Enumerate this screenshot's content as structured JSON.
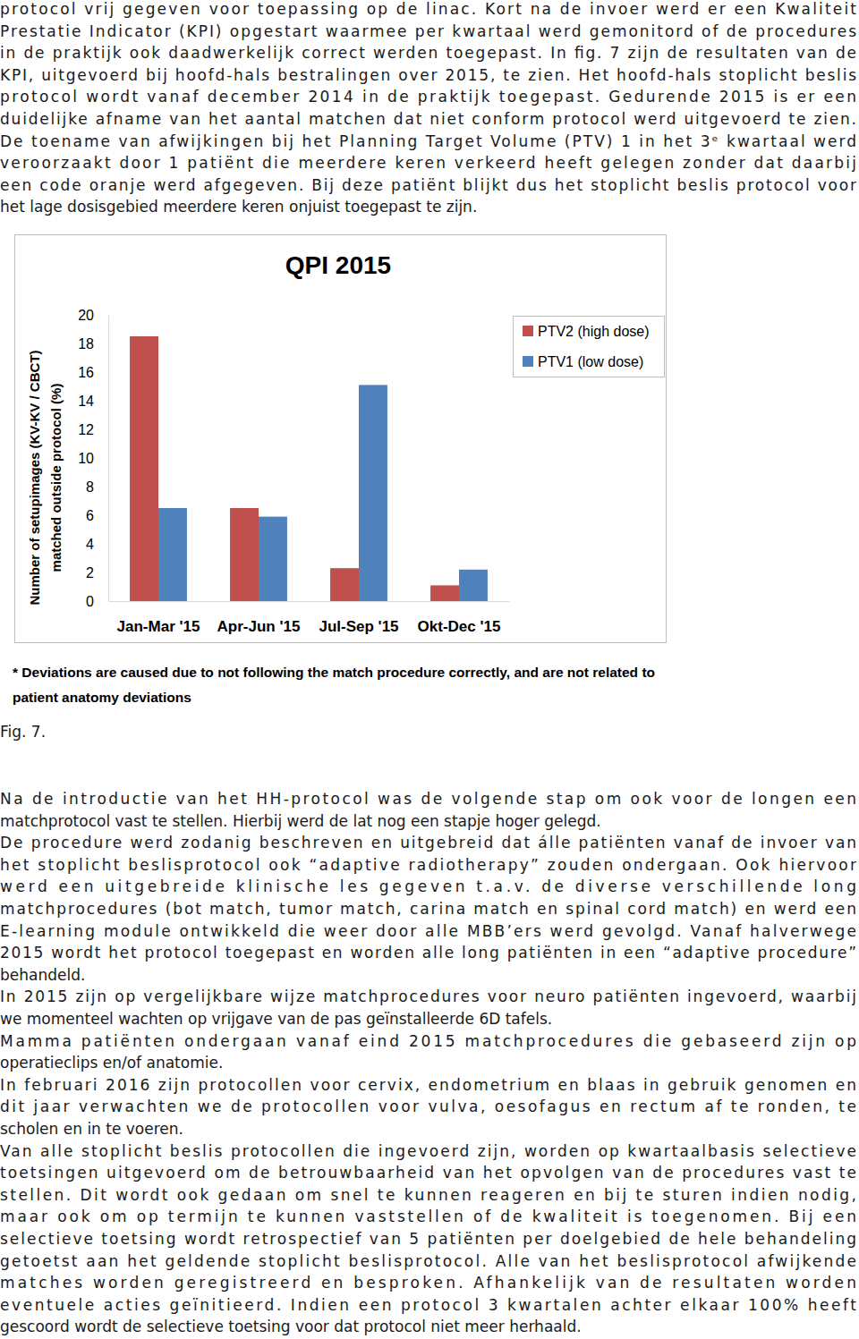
{
  "text_before": [
    [
      "protocol vrij gegeven voor toepassing op de linac. Kort na de invoer werd er een Kwaliteit",
      "Prestatie Indicator (KPI) opgestart waarmee per kwartaal werd gemonitord of de procedures",
      "in de praktijk ook daadwerkelijk correct werden toegepast. In fig. 7 zijn de resultaten van de",
      "KPI, uitgevoerd bij hoofd-hals bestralingen over 2015, te zien. Het hoofd-hals stoplicht beslis",
      "protocol wordt vanaf december 2014 in de praktijk toegepast. Gedurende 2015 is er een",
      "duidelijke afname van het aantal matchen dat niet conform protocol werd uitgevoerd te zien.",
      "De toename van afwijkingen bij het Planning Target Volume (PTV) 1 in het 3ᵉ kwartaal werd",
      "veroorzaakt door 1 patiënt die meerdere keren verkeerd heeft gelegen zonder dat daarbij",
      "een code oranje werd afgegeven. Bij deze patiënt blijkt dus het stoplicht beslis protocol voor",
      "het lage dosisgebied meerdere keren onjuist toegepast te zijn."
    ]
  ],
  "chart_data": {
    "type": "bar",
    "title": "QPI 2015",
    "y_label": [
      "Number of setupimages (KV-KV / CBCT)",
      "matched outside protocol (%)"
    ],
    "categories": [
      "Jan-Mar '15",
      "Apr-Jun '15",
      "Jul-Sep '15",
      "Okt-Dec '15"
    ],
    "series": [
      {
        "name": "PTV2 (high dose)",
        "color": "#c0504d",
        "values": [
          18.5,
          6.5,
          2.3,
          1.1
        ]
      },
      {
        "name": "PTV1 (low dose)",
        "color": "#4f81bd",
        "values": [
          6.5,
          5.9,
          15.1,
          2.2
        ]
      }
    ],
    "ylim": [
      0,
      20
    ],
    "yticks": [
      0,
      2,
      4,
      6,
      8,
      10,
      12,
      14,
      16,
      18,
      20
    ],
    "grid": false,
    "legend": "right"
  },
  "footnote": [
    "* Deviations are caused due to not following the match procedure correctly, and are not related to",
    "patient anatomy deviations"
  ],
  "caption": "Fig. 7.",
  "text_after": [
    [
      "Na de introductie van het HH-protocol was de volgende stap om ook voor de longen een",
      "matchprotocol vast te stellen. Hierbij werd de lat nog een stapje hoger gelegd."
    ],
    [
      "De procedure werd zodanig beschreven en uitgebreid dat álle patiënten vanaf de invoer van",
      "het stoplicht beslisprotocol ook “adaptive radiotherapy” zouden ondergaan. Ook hiervoor",
      "werd een uitgebreide klinische les gegeven t.a.v. de diverse verschillende long",
      "matchprocedures (bot match, tumor match, carina match en spinal cord match) en werd een",
      "E-learning module ontwikkeld die weer door alle MBB’ers werd gevolgd. Vanaf halverwege",
      "2015 wordt het protocol toegepast en worden alle long patiënten in een “adaptive procedure”",
      "behandeld."
    ],
    [
      "In 2015 zijn op vergelijkbare wijze matchprocedures voor neuro patiënten ingevoerd, waarbij",
      "we momenteel wachten op vrijgave van de pas geïnstalleerde 6D tafels."
    ],
    [
      "Mamma patiënten ondergaan vanaf eind 2015 matchprocedures die gebaseerd zijn op",
      "operatieclips en/of anatomie."
    ],
    [
      "In februari 2016 zijn protocollen voor cervix, endometrium en blaas in gebruik genomen en",
      "dit jaar verwachten we de protocollen voor vulva, oesofagus en rectum af te ronden, te",
      "scholen en in te voeren."
    ],
    [
      "Van alle stoplicht beslis protocollen die ingevoerd zijn, worden op kwartaalbasis selectieve",
      "toetsingen uitgevoerd om de betrouwbaarheid van het opvolgen van de procedures vast te",
      "stellen. Dit wordt ook gedaan om snel te kunnen reageren en bij te sturen indien nodig,",
      "maar ook om op termijn te kunnen vaststellen of de kwaliteit is toegenomen. Bij een",
      "selectieve toetsing wordt retrospectief van 5 patiënten per doelgebied de hele behandeling",
      "getoetst aan het geldende stoplicht beslisprotocol. Alle van het beslisprotocol afwijkende",
      "matches worden geregistreerd en besproken. Afhankelijk van de resultaten worden",
      "eventuele acties geïnitieerd. Indien een protocol 3 kwartalen achter elkaar 100% heeft",
      "gescoord wordt de selectieve toetsing voor dat protocol niet meer herhaald."
    ]
  ]
}
